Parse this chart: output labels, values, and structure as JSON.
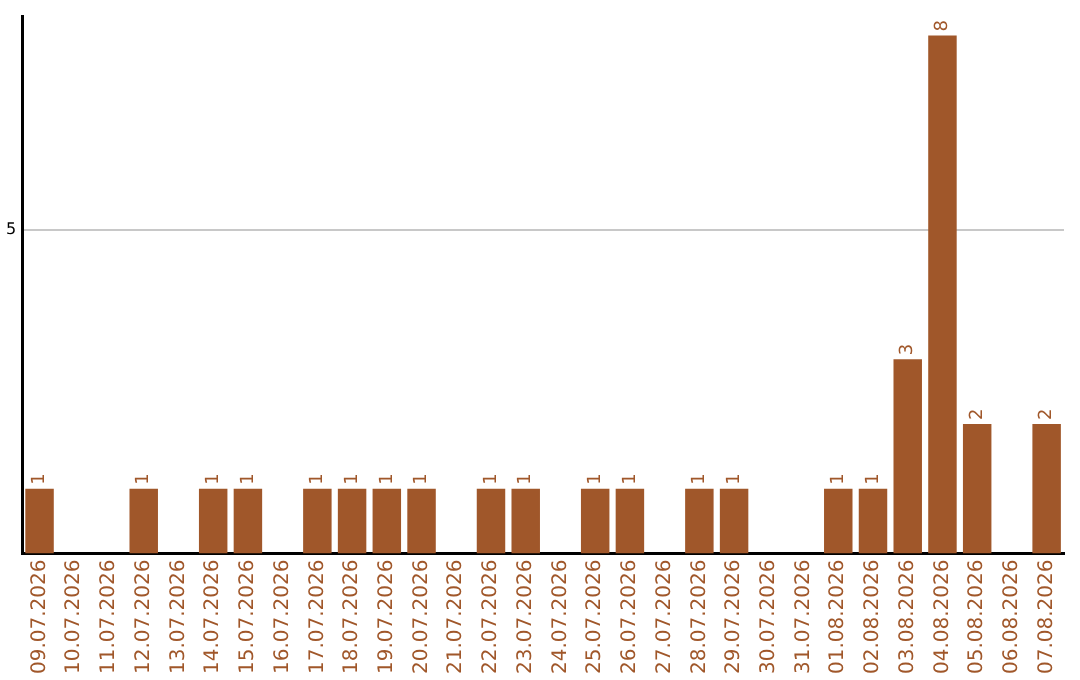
{
  "chart_data": {
    "type": "bar",
    "categories": [
      "09.07.2026",
      "10.07.2026",
      "11.07.2026",
      "12.07.2026",
      "13.07.2026",
      "14.07.2026",
      "15.07.2026",
      "16.07.2026",
      "17.07.2026",
      "18.07.2026",
      "19.07.2026",
      "20.07.2026",
      "21.07.2026",
      "22.07.2026",
      "23.07.2026",
      "24.07.2026",
      "25.07.2026",
      "26.07.2026",
      "27.07.2026",
      "28.07.2026",
      "29.07.2026",
      "30.07.2026",
      "31.07.2026",
      "01.08.2026",
      "02.08.2026",
      "03.08.2026",
      "04.08.2026",
      "05.08.2026",
      "06.08.2026",
      "07.08.2026"
    ],
    "values": [
      1,
      0,
      0,
      1,
      0,
      1,
      1,
      0,
      1,
      1,
      1,
      1,
      0,
      1,
      1,
      0,
      1,
      1,
      0,
      1,
      1,
      0,
      0,
      1,
      1,
      3,
      8,
      2,
      0,
      2
    ],
    "value_labels": [
      "1",
      null,
      null,
      "1",
      null,
      "1",
      "1",
      null,
      "1",
      "1",
      "1",
      "1",
      null,
      "1",
      "1",
      null,
      "1",
      "1",
      null,
      "1",
      "1",
      null,
      null,
      "1",
      "1",
      "3",
      "8",
      "2",
      null,
      "2"
    ],
    "color": "#a0572a",
    "ylim": [
      0,
      8.3
    ],
    "yticks": [
      5
    ],
    "grid": "y",
    "legend": false
  }
}
